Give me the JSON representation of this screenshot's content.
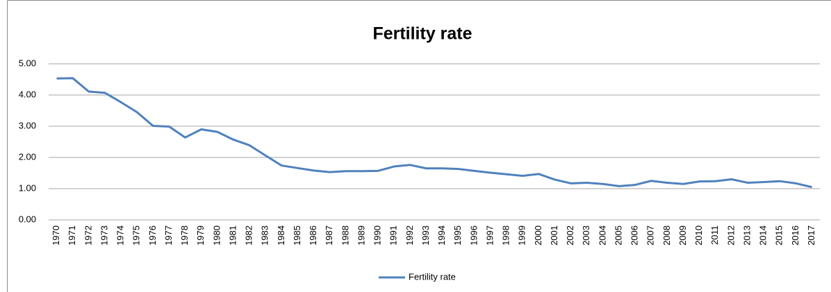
{
  "chart_data": {
    "type": "line",
    "title": "Fertility rate",
    "categories": [
      "1970",
      "1971",
      "1972",
      "1973",
      "1974",
      "1975",
      "1976",
      "1977",
      "1978",
      "1979",
      "1980",
      "1981",
      "1982",
      "1983",
      "1984",
      "1985",
      "1986",
      "1987",
      "1988",
      "1989",
      "1990",
      "1991",
      "1992",
      "1993",
      "1994",
      "1995",
      "1996",
      "1997",
      "1998",
      "1999",
      "2000",
      "2001",
      "2002",
      "2003",
      "2004",
      "2005",
      "2006",
      "2007",
      "2008",
      "2009",
      "2010",
      "2011",
      "2012",
      "2013",
      "2014",
      "2015",
      "2016",
      "2017"
    ],
    "series": [
      {
        "name": "Fertility rate",
        "color": "#4f81bd",
        "values": [
          4.53,
          4.54,
          4.11,
          4.07,
          3.77,
          3.45,
          3.01,
          2.99,
          2.64,
          2.9,
          2.82,
          2.57,
          2.39,
          2.06,
          1.74,
          1.66,
          1.58,
          1.53,
          1.56,
          1.56,
          1.57,
          1.71,
          1.76,
          1.65,
          1.65,
          1.63,
          1.57,
          1.51,
          1.46,
          1.41,
          1.47,
          1.29,
          1.17,
          1.19,
          1.15,
          1.08,
          1.12,
          1.25,
          1.19,
          1.15,
          1.23,
          1.24,
          1.3,
          1.19,
          1.21,
          1.24,
          1.17,
          1.05
        ]
      }
    ],
    "ylim": [
      0,
      5
    ],
    "yticks": [
      {
        "value": 0,
        "label": "0.00"
      },
      {
        "value": 1,
        "label": "1.00"
      },
      {
        "value": 2,
        "label": "2.00"
      },
      {
        "value": 3,
        "label": "3.00"
      },
      {
        "value": 4,
        "label": "4.00"
      },
      {
        "value": 5,
        "label": "5.00"
      }
    ],
    "grid": true,
    "legend": "bottom"
  }
}
